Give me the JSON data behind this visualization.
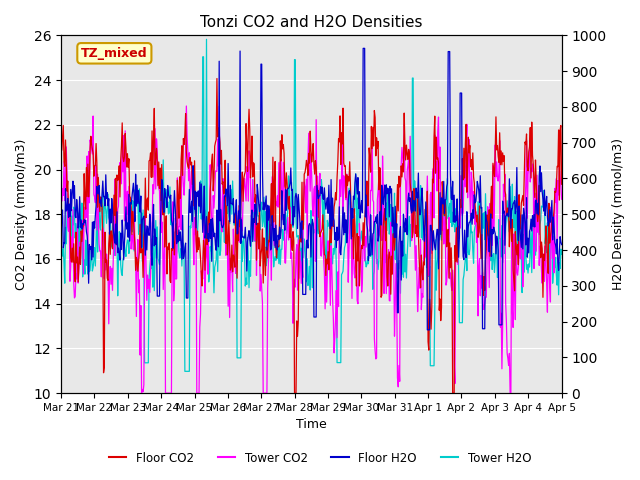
{
  "title": "Tonzi CO2 and H2O Densities",
  "xlabel": "Time",
  "ylabel_left": "CO2 Density (mmol/m3)",
  "ylabel_right": "H2O Density (mmol/m3)",
  "annotation": "TZ_mixed",
  "annotation_color": "#cc0000",
  "annotation_bg": "#ffffcc",
  "annotation_border": "#cc9900",
  "ylim_left": [
    10,
    26
  ],
  "ylim_right": [
    0,
    1000
  ],
  "yticks_left": [
    10,
    12,
    14,
    16,
    18,
    20,
    22,
    24,
    26
  ],
  "yticks_right": [
    0,
    100,
    200,
    300,
    400,
    500,
    600,
    700,
    800,
    900,
    1000
  ],
  "xtick_labels": [
    "Mar 21",
    "Mar 22",
    "Mar 23",
    "Mar 24",
    "Mar 25",
    "Mar 26",
    "Mar 27",
    "Mar 28",
    "Mar 29",
    "Mar 30",
    "Mar 31",
    "Apr 1",
    "Apr 2",
    "Apr 3",
    "Apr 4",
    "Apr 5"
  ],
  "colors": {
    "floor_co2": "#dd0000",
    "tower_co2": "#ff00ff",
    "floor_h2o": "#0000cc",
    "tower_h2o": "#00cccc"
  },
  "legend_labels": [
    "Floor CO2",
    "Tower CO2",
    "Floor H2O",
    "Tower H2O"
  ],
  "bg_color": "#e8e8e8",
  "n_points": 672,
  "seed": 42
}
